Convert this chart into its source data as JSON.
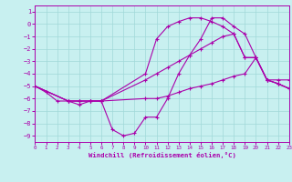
{
  "xlabel": "Windchill (Refroidissement éolien,°C)",
  "bg_color": "#c8f0f0",
  "grid_color": "#a0d8d8",
  "line_color": "#aa00aa",
  "xlim": [
    0,
    23
  ],
  "ylim": [
    -9.5,
    1.5
  ],
  "yticks": [
    1,
    0,
    -1,
    -2,
    -3,
    -4,
    -5,
    -6,
    -7,
    -8,
    -9
  ],
  "xticks": [
    0,
    1,
    2,
    3,
    4,
    5,
    6,
    7,
    8,
    9,
    10,
    11,
    12,
    13,
    14,
    15,
    16,
    17,
    18,
    19,
    20,
    21,
    22,
    23
  ],
  "series": [
    {
      "x": [
        0,
        1,
        2,
        3,
        4,
        5,
        6,
        7,
        8,
        9,
        10,
        11,
        12,
        13,
        14,
        15,
        16,
        17,
        18,
        19,
        20,
        21,
        22,
        23
      ],
      "y": [
        -5.0,
        -5.5,
        -6.2,
        -6.2,
        -6.5,
        -6.2,
        -6.2,
        -8.5,
        -9.0,
        -8.8,
        -7.5,
        -7.5,
        -6.0,
        -4.0,
        -2.5,
        -1.2,
        0.5,
        0.5,
        -0.2,
        -0.8,
        -2.7,
        -4.5,
        -4.8,
        -5.2
      ]
    },
    {
      "x": [
        0,
        3,
        4,
        5,
        6,
        10,
        11,
        12,
        13,
        14,
        15,
        16,
        17,
        18,
        19,
        20,
        21,
        22,
        23
      ],
      "y": [
        -5.0,
        -6.2,
        -6.2,
        -6.2,
        -6.2,
        -4.0,
        -1.2,
        -0.2,
        0.2,
        0.5,
        0.5,
        0.2,
        -0.2,
        -0.8,
        -2.7,
        -2.7,
        -4.5,
        -4.5,
        -4.5
      ]
    },
    {
      "x": [
        0,
        3,
        4,
        5,
        6,
        10,
        11,
        12,
        13,
        14,
        15,
        16,
        17,
        18,
        19,
        20,
        21,
        22,
        23
      ],
      "y": [
        -5.0,
        -6.2,
        -6.2,
        -6.2,
        -6.2,
        -4.5,
        -4.0,
        -3.5,
        -3.0,
        -2.5,
        -2.0,
        -1.5,
        -1.0,
        -0.8,
        -2.7,
        -2.7,
        -4.5,
        -4.8,
        -5.2
      ]
    },
    {
      "x": [
        0,
        3,
        4,
        5,
        6,
        10,
        11,
        12,
        13,
        14,
        15,
        16,
        17,
        18,
        19,
        20,
        21,
        22,
        23
      ],
      "y": [
        -5.0,
        -6.2,
        -6.2,
        -6.2,
        -6.2,
        -6.0,
        -6.0,
        -5.8,
        -5.5,
        -5.2,
        -5.0,
        -4.8,
        -4.5,
        -4.2,
        -4.0,
        -2.7,
        -4.5,
        -4.8,
        -5.2
      ]
    }
  ],
  "lw": 0.8,
  "ms": 3.0,
  "mew": 0.8
}
